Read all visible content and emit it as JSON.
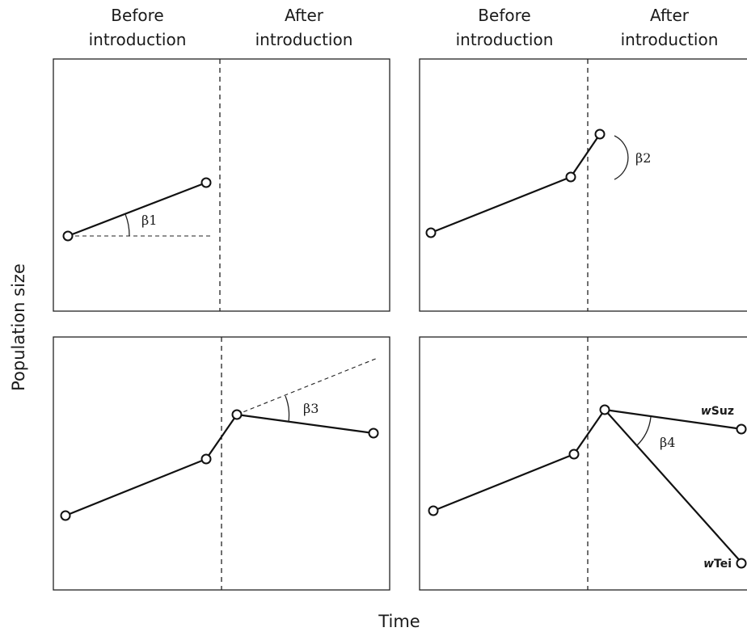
{
  "headers": {
    "left": [
      {
        "line1": "Before",
        "line2": "introduction"
      },
      {
        "line1": "After",
        "line2": "introduction"
      }
    ],
    "right": [
      {
        "line1": "Before",
        "line2": "introduction"
      },
      {
        "line1": "After",
        "line2": "introduction"
      }
    ]
  },
  "axes": {
    "y_title": "Population size",
    "x_title": "Time"
  },
  "panels": {
    "top_left": {
      "angle_label": "β1"
    },
    "top_right": {
      "angle_label": "β2"
    },
    "bottom_left": {
      "angle_label": "β3"
    },
    "bottom_right": {
      "angle_label": "β4",
      "series_wsuz": {
        "prefix": "w",
        "name": "Suz"
      },
      "series_wtei": {
        "prefix": "w",
        "name": "Tei"
      }
    }
  }
}
